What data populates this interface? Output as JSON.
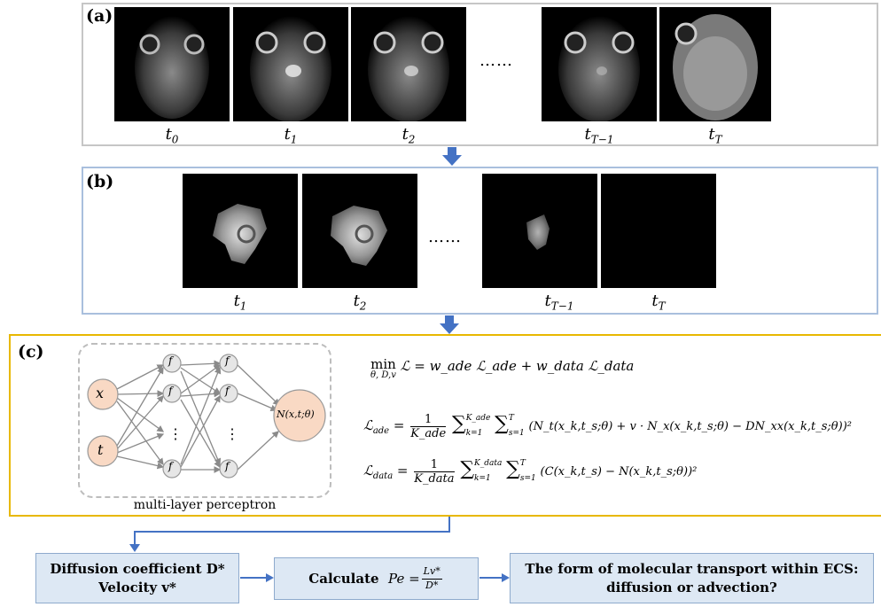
{
  "panel_a": {
    "label": "(a)",
    "time_labels": [
      {
        "base": "t",
        "sub": "0"
      },
      {
        "base": "t",
        "sub": "1"
      },
      {
        "base": "t",
        "sub": "2"
      },
      {
        "base": "t",
        "sub": "T−1"
      },
      {
        "base": "t",
        "sub": "T"
      }
    ],
    "ellipsis": "……"
  },
  "panel_b": {
    "label": "(b)",
    "time_labels": [
      {
        "base": "t",
        "sub": "1"
      },
      {
        "base": "t",
        "sub": "2"
      },
      {
        "base": "t",
        "sub": "T−1"
      },
      {
        "base": "t",
        "sub": "T"
      }
    ],
    "ellipsis": "……"
  },
  "panel_c": {
    "label": "(c)",
    "mlp": {
      "inputs": [
        "x",
        "t"
      ],
      "hidden_node": "f",
      "output": "N(x,t;θ)",
      "vdots": "⋮",
      "caption": "multi-layer perceptron"
    },
    "equations": {
      "min_op": "min",
      "min_sub": "θ, D,v",
      "objective": "ℒ = w_ade ℒ_ade + w_data ℒ_data",
      "l_ade_lhs": "ℒ",
      "l_ade_lhs_sub": "ade",
      "l_ade_frac_num": "1",
      "l_ade_frac_den": "K_ade",
      "l_ade_sum_k_top": "K_ade",
      "l_ade_sum_k_bot": "k=1",
      "l_ade_sum_s_top": "T",
      "l_ade_sum_s_bot": "s=1",
      "l_ade_body": "(N_t(x_k,t_s;θ) + v · N_x(x_k,t_s;θ) − DN_xx(x_k,t_s;θ))²",
      "l_data_lhs_sub": "data",
      "l_data_frac_den": "K_data",
      "l_data_sum_k_top": "K_data",
      "l_data_body": "(C(x_k,t_s) − N(x_k,t_s;θ))²"
    }
  },
  "flow": {
    "box1_line1": "Diffusion coefficient D*",
    "box1_line2": "Velocity v*",
    "box2_label": "Calculate",
    "box2_formula_lhs": "Pe =",
    "box2_frac_num": "Lv*",
    "box2_frac_den": "D*",
    "box3_line1": "The form of molecular transport within ECS:",
    "box3_line2": "diffusion or advection?"
  },
  "colors": {
    "panel_a_border": "#c6c6c6",
    "panel_b_border": "#a9bfdd",
    "panel_c_border": "#e8b800",
    "arrow": "#4472c4",
    "box_fill": "#dde8f4",
    "input_node_fill": "#f9d9c4",
    "hidden_node_fill": "#e6e6e6"
  }
}
